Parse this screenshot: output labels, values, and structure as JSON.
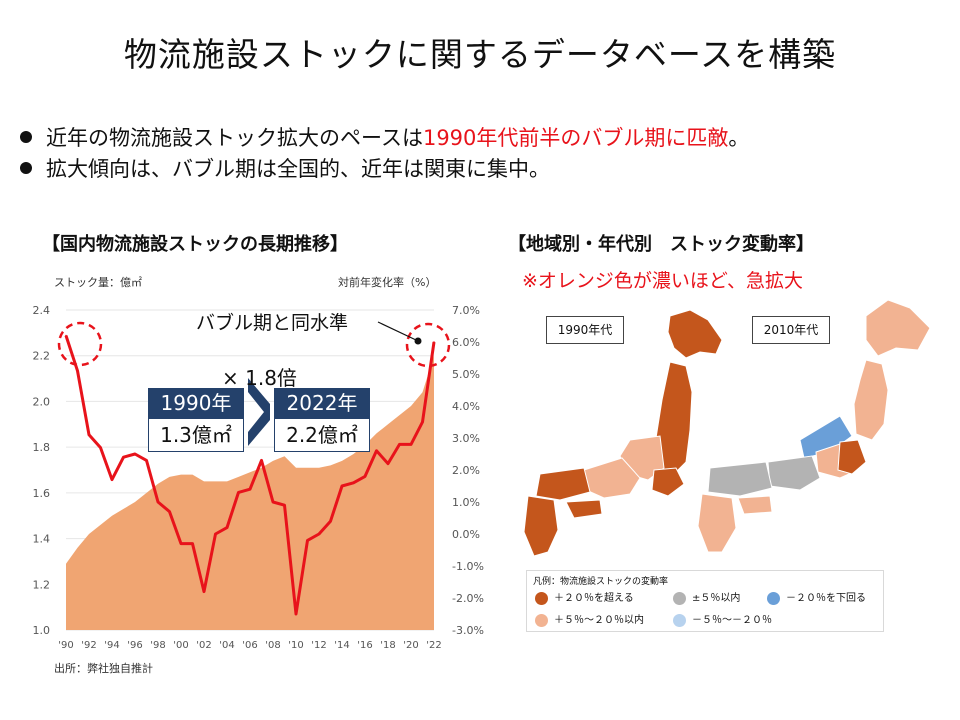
{
  "title": "物流施設ストックに関するデータベースを構築",
  "bullets": [
    {
      "pre": "近年の物流施設ストック拡大のペースは",
      "highlight": "1990年代前半のバブル期に匹敵",
      "post": "。"
    },
    {
      "pre": "拡大傾向は、バブル期は全国的、近年は関東に集中。",
      "highlight": "",
      "post": ""
    }
  ],
  "left_section_title": "【国内物流施設ストックの長期推移】",
  "right_section_title": "【地域別・年代別　ストック変動率】",
  "map_note": "※オレンジ色が濃いほど、急拡大",
  "chart_data": {
    "type": "area",
    "y_left_label": "ストック量：億㎡",
    "y_right_label": "対前年変化率（%）",
    "y_left_ticks": [
      "1.0",
      "1.2",
      "1.4",
      "1.6",
      "1.8",
      "2.0",
      "2.2",
      "2.4"
    ],
    "y_right_ticks": [
      "-3.0%",
      "-2.0%",
      "-1.0%",
      "0.0%",
      "1.0%",
      "2.0%",
      "3.0%",
      "4.0%",
      "5.0%",
      "6.0%",
      "7.0%"
    ],
    "x_tick_labels": [
      "'90",
      "'92",
      "'94",
      "'96",
      "'98",
      "'00",
      "'02",
      "'04",
      "'06",
      "'08",
      "'10",
      "'12",
      "'14",
      "'16",
      "'18",
      "'20",
      "'22"
    ],
    "ylim_left": [
      1.0,
      2.4
    ],
    "ylim_right": [
      -3.0,
      7.0
    ],
    "years": [
      1990,
      1991,
      1992,
      1993,
      1994,
      1995,
      1996,
      1997,
      1998,
      1999,
      2000,
      2001,
      2002,
      2003,
      2004,
      2005,
      2006,
      2007,
      2008,
      2009,
      2010,
      2011,
      2012,
      2013,
      2014,
      2015,
      2016,
      2017,
      2018,
      2019,
      2020,
      2021,
      2022
    ],
    "series": [
      {
        "name": "ストック量",
        "axis": "left",
        "color": "#f0a572",
        "values": [
          1.29,
          1.36,
          1.42,
          1.46,
          1.5,
          1.53,
          1.56,
          1.6,
          1.64,
          1.67,
          1.68,
          1.68,
          1.65,
          1.65,
          1.65,
          1.67,
          1.69,
          1.71,
          1.74,
          1.76,
          1.71,
          1.71,
          1.71,
          1.72,
          1.74,
          1.77,
          1.81,
          1.86,
          1.9,
          1.94,
          1.98,
          2.04,
          2.2
        ]
      },
      {
        "name": "対前年変化率",
        "axis": "right",
        "color": "#e8131b",
        "values": [
          6.2,
          5.1,
          3.1,
          2.7,
          1.7,
          2.4,
          2.5,
          2.3,
          1.0,
          0.7,
          -0.3,
          -0.3,
          -1.8,
          0.0,
          0.2,
          1.3,
          1.4,
          2.3,
          1.0,
          0.9,
          -2.5,
          -0.2,
          0.0,
          0.4,
          1.5,
          1.6,
          1.8,
          2.6,
          2.2,
          2.8,
          2.8,
          3.5,
          6.0
        ]
      }
    ],
    "annotations": {
      "bubble_label": "バブル期と同水準",
      "multiplier": "× 1.8倍",
      "from_year": "1990年",
      "from_value": "1.3億㎡",
      "to_year": "2022年",
      "to_value": "2.2億㎡"
    }
  },
  "source": "出所：弊社独自推計",
  "maps": {
    "era_1990": "1990年代",
    "era_2010": "2010年代"
  },
  "legend": {
    "title": "凡例：物流施設ストックの変動率",
    "items": [
      {
        "label": "＋２０％を超える",
        "color": "#c4561c"
      },
      {
        "label": "±５％以内",
        "color": "#b3b3b3"
      },
      {
        "label": "－２０％を下回る",
        "color": "#6a9fd8"
      },
      {
        "label": "＋５％～２０％以内",
        "color": "#f2b392"
      },
      {
        "label": "－５％～－２０％",
        "color": "#b7d2ee"
      }
    ]
  }
}
